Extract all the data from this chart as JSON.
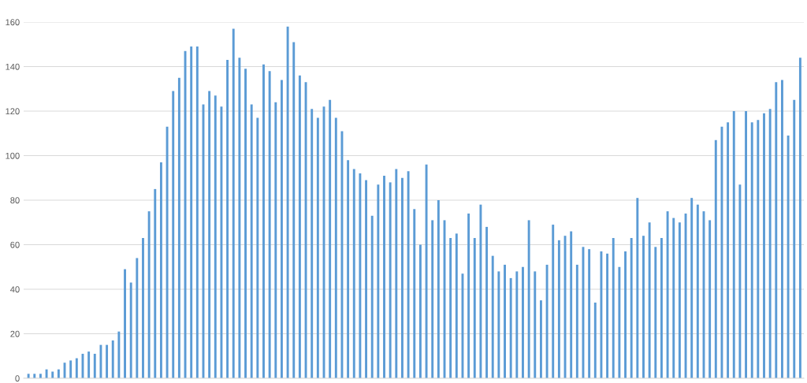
{
  "chart_data": {
    "type": "bar",
    "categories": [
      null,
      null,
      null,
      null,
      null,
      null,
      null,
      null,
      null,
      null,
      null,
      null,
      null,
      null,
      null,
      null,
      null,
      null,
      null,
      null,
      null,
      null,
      null,
      null,
      null,
      null,
      null,
      null,
      null,
      null,
      null,
      null,
      null,
      null,
      null,
      null,
      null,
      null,
      null,
      null,
      null,
      null,
      null,
      null,
      null,
      null,
      null,
      null,
      null,
      null,
      null,
      null,
      null,
      null,
      null,
      null,
      null,
      null,
      null,
      null,
      null,
      null,
      null,
      null,
      null,
      null,
      null,
      null,
      null,
      null,
      null,
      null,
      null,
      null,
      null,
      null,
      null,
      null,
      null,
      null,
      null,
      null,
      null,
      null,
      null,
      null,
      null,
      null,
      null,
      null,
      null,
      null,
      null,
      null,
      null,
      null,
      null,
      null,
      null,
      null,
      null,
      null,
      null,
      null,
      null,
      null,
      null,
      null,
      null,
      null,
      null,
      null,
      null,
      null,
      null,
      null,
      null,
      null,
      null,
      null,
      null,
      null,
      null,
      null,
      null,
      null,
      null,
      null,
      null
    ],
    "values": [
      2,
      2,
      2,
      4,
      3,
      4,
      7,
      8,
      9,
      11,
      12,
      11,
      15,
      15,
      17,
      21,
      49,
      43,
      54,
      63,
      75,
      85,
      97,
      113,
      129,
      135,
      147,
      149,
      149,
      123,
      129,
      127,
      122,
      143,
      157,
      144,
      139,
      123,
      117,
      141,
      138,
      124,
      134,
      158,
      151,
      136,
      133,
      121,
      117,
      122,
      125,
      117,
      111,
      98,
      94,
      92,
      89,
      73,
      87,
      91,
      88,
      94,
      90,
      93,
      76,
      60,
      96,
      71,
      80,
      71,
      63,
      65,
      47,
      74,
      63,
      78,
      68,
      55,
      48,
      51,
      45,
      48,
      50,
      71,
      48,
      35,
      51,
      69,
      62,
      64,
      66,
      51,
      59,
      58,
      34,
      57,
      56,
      63,
      50,
      57,
      63,
      81,
      64,
      70,
      59,
      63,
      75,
      72,
      70,
      74,
      81,
      78,
      75,
      71,
      107,
      113,
      115,
      120,
      87,
      120,
      115,
      116,
      119,
      121,
      133,
      134,
      109,
      125,
      144
    ],
    "color": "#5b9bd5",
    "ylim": [
      0,
      160
    ],
    "yticks": [
      0,
      20,
      40,
      60,
      80,
      100,
      120,
      140,
      160
    ],
    "grid": "y",
    "tick_labels": "y"
  }
}
